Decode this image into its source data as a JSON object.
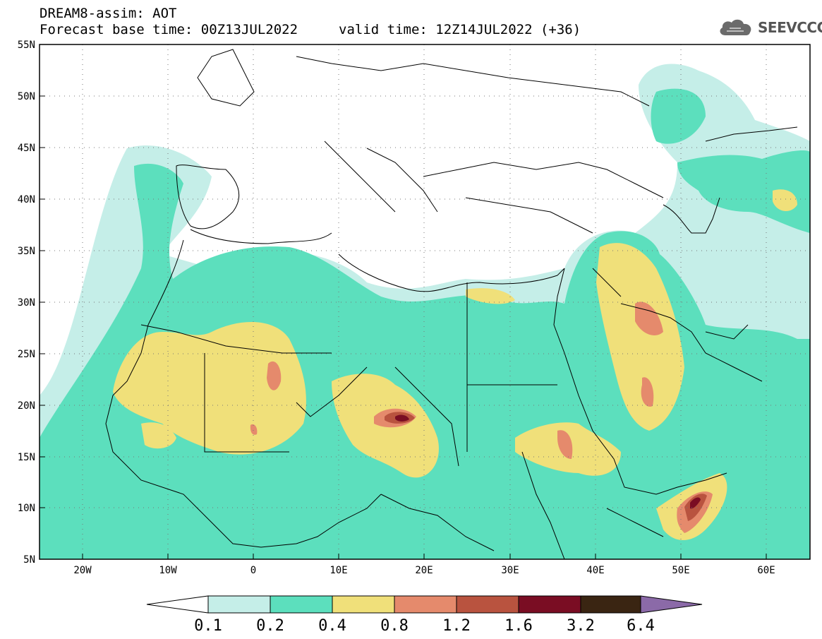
{
  "header": {
    "title": "DREAM8-assim: AOT",
    "base_time": "Forecast base time: 00Z13JUL2022",
    "valid_time": "valid time: 12Z14JUL2022 (+36)"
  },
  "logo": {
    "text": "SEEVCCC",
    "icon": "cloud-icon"
  },
  "map": {
    "lat_labels": [
      "55N",
      "50N",
      "45N",
      "40N",
      "35N",
      "30N",
      "25N",
      "20N",
      "15N",
      "10N",
      "5N"
    ],
    "lon_labels": [
      "20W",
      "10W",
      "0",
      "10E",
      "20E",
      "30E",
      "40E",
      "50E",
      "60E"
    ],
    "extent": {
      "lon_min": -25,
      "lon_max": 65,
      "lat_min": 5,
      "lat_max": 55
    },
    "colors": {
      "c1": "#c5eee8",
      "c2": "#5cdfbd",
      "c3": "#f0e07a",
      "c4": "#e58a6c",
      "c5": "#b9533f",
      "c6": "#7a0d23",
      "c7": "#3a2512"
    }
  },
  "colorbar": {
    "levels": [
      "0.1",
      "0.2",
      "0.4",
      "0.8",
      "1.2",
      "1.6",
      "3.2",
      "6.4"
    ],
    "colors": [
      "#c5eee8",
      "#5cdfbd",
      "#f0e07a",
      "#e58a6c",
      "#b9533f",
      "#7a0d23",
      "#3a2512"
    ],
    "under_color": "#ffffff",
    "over_color": "#8b6aa8"
  }
}
